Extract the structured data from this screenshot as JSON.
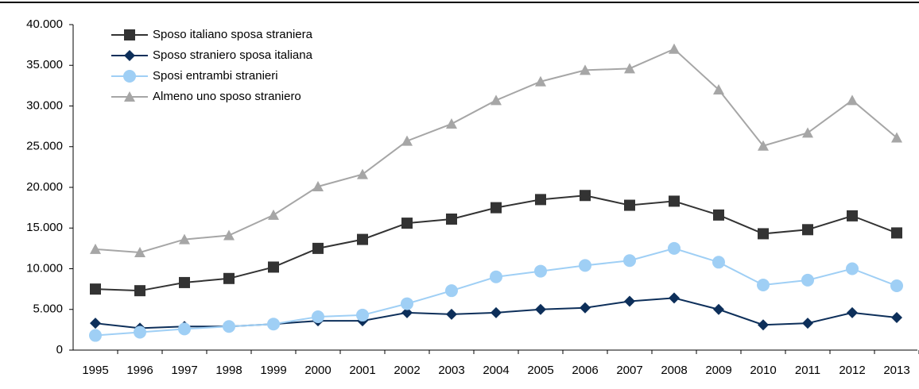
{
  "chart_data": {
    "type": "line",
    "x": [
      1995,
      1996,
      1997,
      1998,
      1999,
      2000,
      2001,
      2002,
      2003,
      2004,
      2005,
      2006,
      2007,
      2008,
      2009,
      2010,
      2011,
      2012,
      2013
    ],
    "series": [
      {
        "name": "Sposo italiano sposa straniera",
        "color": "#333333",
        "marker": "square",
        "values": [
          7500,
          7300,
          8300,
          8800,
          10200,
          12500,
          13600,
          15600,
          16100,
          17500,
          18500,
          19000,
          17800,
          18300,
          16600,
          14300,
          14800,
          16500,
          14400
        ]
      },
      {
        "name": "Sposo straniero sposa italiana",
        "color": "#0d2f5a",
        "marker": "diamond",
        "values": [
          3300,
          2700,
          2900,
          2900,
          3200,
          3600,
          3600,
          4600,
          4400,
          4600,
          5000,
          5200,
          6000,
          6400,
          5000,
          3100,
          3300,
          4600,
          4000
        ]
      },
      {
        "name": "Sposi entrambi stranieri",
        "color": "#9fcff5",
        "marker": "circle",
        "values": [
          1800,
          2200,
          2600,
          2900,
          3200,
          4100,
          4300,
          5700,
          7300,
          9000,
          9700,
          10400,
          11000,
          12500,
          10800,
          8000,
          8600,
          10000,
          7900
        ]
      },
      {
        "name": "Almeno uno sposo straniero",
        "color": "#a6a6a6",
        "marker": "triangle",
        "values": [
          12400,
          12000,
          13600,
          14100,
          16600,
          20100,
          21600,
          25700,
          27800,
          30700,
          33000,
          34400,
          34600,
          37000,
          32000,
          25100,
          26700,
          30700,
          26100
        ]
      }
    ],
    "ylim": [
      0,
      40000
    ],
    "yticks": [
      0,
      {
        "value": 5000,
        "label": "5.000"
      },
      {
        "value": 10000,
        "label": "10.000"
      },
      {
        "value": 15000,
        "label": "15.000"
      },
      {
        "value": 20000,
        "label": "20.000"
      },
      {
        "value": 25000,
        "label": "25.000"
      },
      {
        "value": 30000,
        "label": "30.000"
      },
      {
        "value": 35000,
        "label": "35.000"
      },
      {
        "value": 40000,
        "label": "40.000"
      }
    ],
    "grid": false,
    "legend": "top-left"
  }
}
